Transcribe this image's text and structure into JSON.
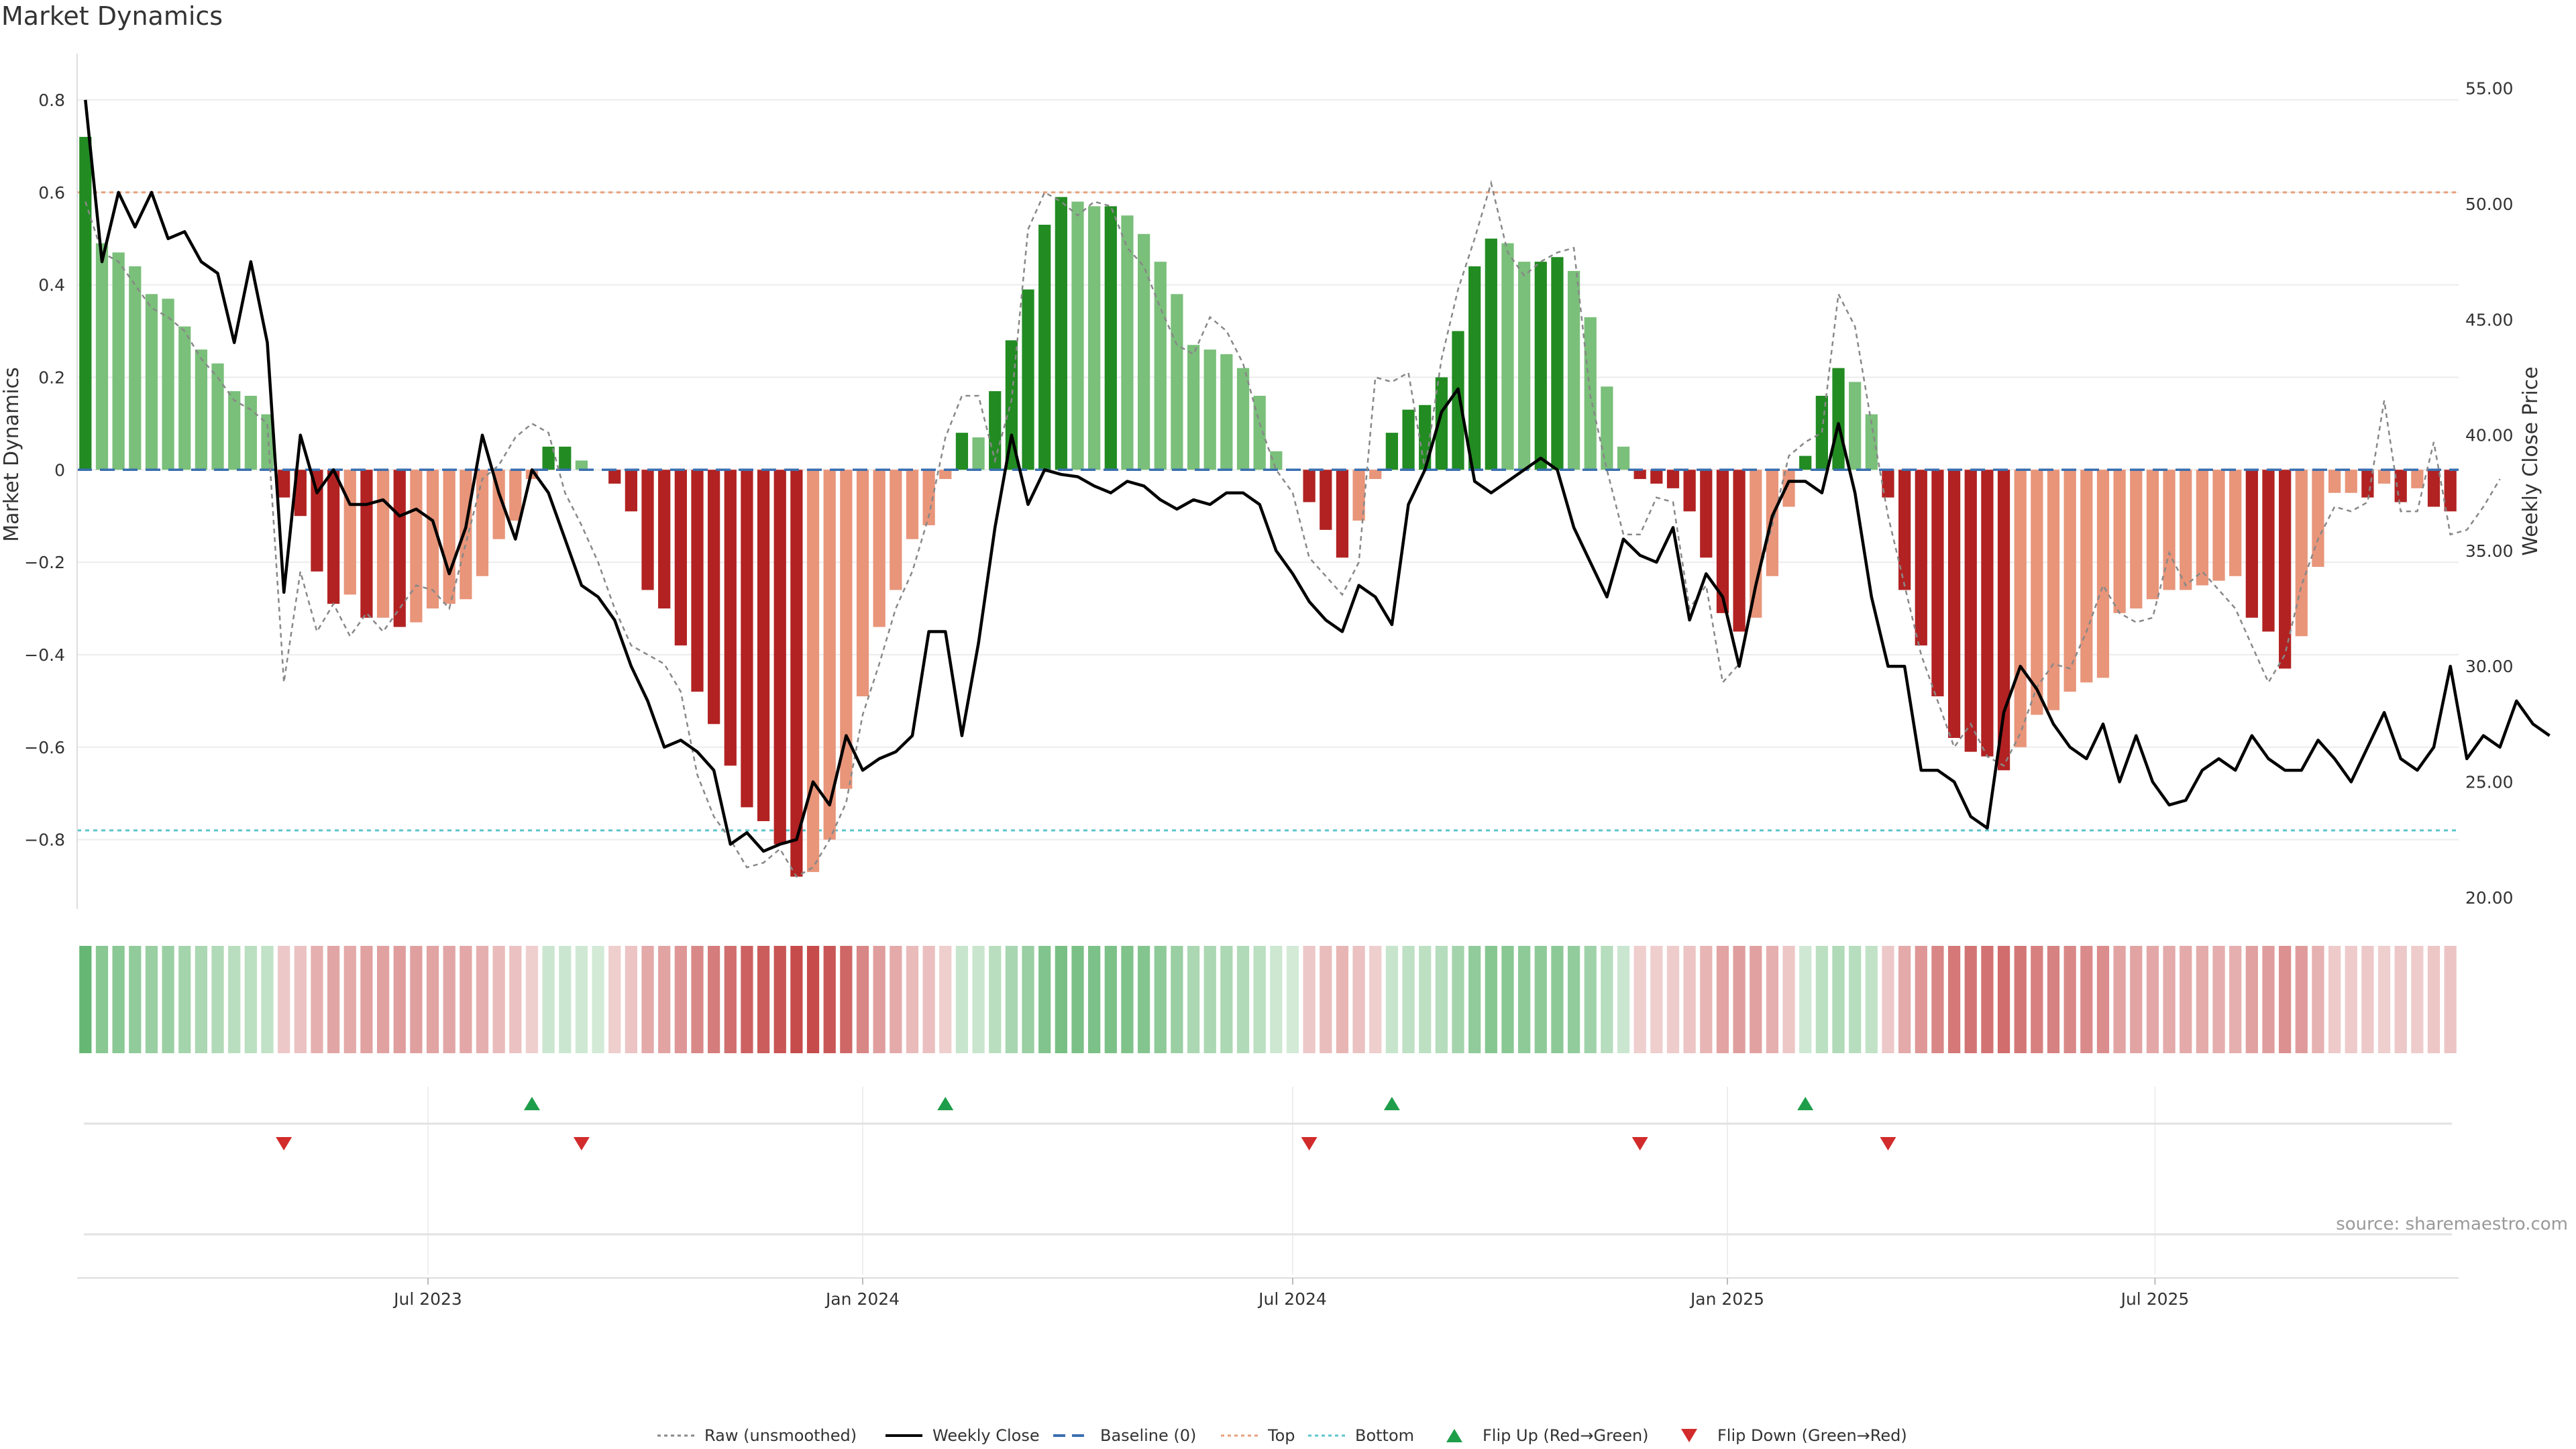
{
  "title": "Market Dynamics",
  "source": "source: sharemaestro.com",
  "chart_data": {
    "type": "bar+line",
    "title": "Market Dynamics",
    "ylabel_left": "Market Dynamics",
    "ylabel_right": "Weekly Close Price",
    "ylim_left": [
      -0.95,
      0.9
    ],
    "ylim_right": [
      19.5,
      56.5
    ],
    "yticks_left": [
      "0.8",
      "0.6",
      "0.4",
      "0.2",
      "0",
      "−0.2",
      "−0.4",
      "−0.6",
      "−0.8"
    ],
    "yticks_left_values": [
      0.8,
      0.6,
      0.4,
      0.2,
      0,
      -0.2,
      -0.4,
      -0.6,
      -0.8
    ],
    "yticks_right": [
      "55.00",
      "50.00",
      "45.00",
      "40.00",
      "35.00",
      "30.00",
      "25.00",
      "20.00"
    ],
    "yticks_right_values": [
      55,
      50,
      45,
      40,
      35,
      30,
      25,
      20
    ],
    "x_start": "2023-02-06",
    "x_step_days": 7,
    "x_ticks": [
      {
        "label": "Jul 2023",
        "date": "2023-07-01"
      },
      {
        "label": "Jan 2024",
        "date": "2024-01-01"
      },
      {
        "label": "Jul 2024",
        "date": "2024-07-01"
      },
      {
        "label": "Jan 2025",
        "date": "2025-01-01"
      },
      {
        "label": "Jul 2025",
        "date": "2025-07-01"
      }
    ],
    "grid": true,
    "legend_position": "bottom-center",
    "top_level": 0.6,
    "bottom_level": -0.78,
    "baseline": 0,
    "colors": {
      "strong_green": "#228B22",
      "light_green": "#7ABF7A",
      "strong_red": "#B22222",
      "light_red": "#E8957A",
      "close_line": "#000000",
      "raw_line": "#888888",
      "baseline": "#3A6FB0",
      "top": "#E8A07A",
      "bottom": "#5CC5CC",
      "flip_up": "#1E9E4A",
      "flip_down": "#D22B2B"
    },
    "bars": [
      0.72,
      0.49,
      0.47,
      0.44,
      0.38,
      0.37,
      0.31,
      0.26,
      0.23,
      0.17,
      0.16,
      0.12,
      -0.06,
      -0.1,
      -0.22,
      -0.29,
      -0.27,
      -0.32,
      -0.32,
      -0.34,
      -0.33,
      -0.3,
      -0.29,
      -0.28,
      -0.23,
      -0.15,
      -0.11,
      -0.02,
      0.05,
      0.05,
      0.02,
      0,
      -0.03,
      -0.09,
      -0.26,
      -0.3,
      -0.38,
      -0.48,
      -0.55,
      -0.64,
      -0.73,
      -0.76,
      -0.81,
      -0.88,
      -0.87,
      -0.8,
      -0.69,
      -0.49,
      -0.34,
      -0.26,
      -0.15,
      -0.12,
      -0.02,
      0.08,
      0.07,
      0.17,
      0.28,
      0.39,
      0.53,
      0.59,
      0.58,
      0.57,
      0.57,
      0.55,
      0.51,
      0.45,
      0.38,
      0.27,
      0.26,
      0.25,
      0.22,
      0.16,
      0.04,
      0,
      -0.07,
      -0.13,
      -0.19,
      -0.11,
      -0.02,
      0.08,
      0.13,
      0.14,
      0.2,
      0.3,
      0.44,
      0.5,
      0.49,
      0.45,
      0.45,
      0.46,
      0.43,
      0.33,
      0.18,
      0.05,
      -0.02,
      -0.03,
      -0.04,
      -0.09,
      -0.19,
      -0.31,
      -0.35,
      -0.32,
      -0.23,
      -0.08,
      0.03,
      0.16,
      0.22,
      0.19,
      0.12,
      -0.06,
      -0.26,
      -0.38,
      -0.49,
      -0.58,
      -0.61,
      -0.62,
      -0.65,
      -0.6,
      -0.53,
      -0.52,
      -0.48,
      -0.46,
      -0.45,
      -0.31,
      -0.3,
      -0.28,
      -0.26,
      -0.26,
      -0.25,
      -0.24,
      -0.23,
      -0.32,
      -0.35,
      -0.43,
      -0.36,
      -0.21,
      -0.05,
      -0.05,
      -0.06,
      -0.03,
      -0.07,
      -0.04,
      -0.08,
      -0.09
    ],
    "weekly_close": [
      54.5,
      47.5,
      50.5,
      49.0,
      50.5,
      48.5,
      48.8,
      47.5,
      47.0,
      44.0,
      47.5,
      44.0,
      33.2,
      40.0,
      37.5,
      38.5,
      37.0,
      37.0,
      37.2,
      36.5,
      36.8,
      36.3,
      34.0,
      36.0,
      40.0,
      37.5,
      35.5,
      38.5,
      37.5,
      35.5,
      33.5,
      33.0,
      32.0,
      30.0,
      28.5,
      26.5,
      26.8,
      26.3,
      25.5,
      22.3,
      22.8,
      22.0,
      22.3,
      22.5,
      25.0,
      24.0,
      27.0,
      25.5,
      26.0,
      26.3,
      27.0,
      31.5,
      31.5,
      27.0,
      31.0,
      36.0,
      40.0,
      37.0,
      38.5,
      38.3,
      38.2,
      37.8,
      37.5,
      38.0,
      37.8,
      37.2,
      36.8,
      37.2,
      37.0,
      37.5,
      37.5,
      37.0,
      35.0,
      34.0,
      32.8,
      32.0,
      31.5,
      33.5,
      33.0,
      31.8,
      37.0,
      38.5,
      41.0,
      42.0,
      38.0,
      37.5,
      38.0,
      38.5,
      39.0,
      38.5,
      36.0,
      34.5,
      33.0,
      35.5,
      34.8,
      34.5,
      36.0,
      32.0,
      34.0,
      33.0,
      30.0,
      33.5,
      36.5,
      38.0,
      38.0,
      37.5,
      40.5,
      37.5,
      33.0,
      30.0,
      30.0,
      25.5,
      25.5,
      25.0,
      23.5,
      23.0,
      28.0,
      30.0,
      29.0,
      27.5,
      26.5,
      26.0,
      27.5,
      25.0,
      27.0,
      25.0,
      24.0,
      24.2,
      25.5,
      26.0,
      25.5,
      27.0,
      26.0,
      25.5,
      25.5,
      26.8,
      26.0,
      25.0,
      26.5,
      28.0,
      26.0,
      25.5,
      26.5,
      30.0,
      26.0,
      27.0,
      26.5,
      28.5,
      27.5,
      27.0
    ],
    "raw": [
      0.58,
      0.47,
      0.45,
      0.4,
      0.35,
      0.33,
      0.3,
      0.24,
      0.2,
      0.15,
      0.13,
      0.1,
      -0.46,
      -0.22,
      -0.35,
      -0.29,
      -0.36,
      -0.31,
      -0.35,
      -0.3,
      -0.25,
      -0.26,
      -0.3,
      -0.16,
      -0.02,
      0.01,
      0.07,
      0.1,
      0.08,
      -0.05,
      -0.12,
      -0.2,
      -0.3,
      -0.38,
      -0.4,
      -0.42,
      -0.48,
      -0.66,
      -0.75,
      -0.8,
      -0.86,
      -0.85,
      -0.82,
      -0.88,
      -0.86,
      -0.8,
      -0.72,
      -0.53,
      -0.42,
      -0.3,
      -0.22,
      -0.1,
      0.07,
      0.16,
      0.16,
      0.02,
      0.15,
      0.52,
      0.6,
      0.58,
      0.55,
      0.58,
      0.57,
      0.48,
      0.44,
      0.35,
      0.27,
      0.25,
      0.33,
      0.3,
      0.23,
      0.1,
      0.0,
      -0.05,
      -0.19,
      -0.23,
      -0.27,
      -0.2,
      0.2,
      0.19,
      0.21,
      0.0,
      0.24,
      0.39,
      0.5,
      0.62,
      0.47,
      0.42,
      0.45,
      0.47,
      0.48,
      0.16,
      0.0,
      -0.14,
      -0.14,
      -0.06,
      -0.07,
      -0.3,
      -0.25,
      -0.46,
      -0.42,
      -0.25,
      -0.12,
      0.03,
      0.06,
      0.08,
      0.38,
      0.31,
      0.1,
      -0.1,
      -0.25,
      -0.4,
      -0.5,
      -0.6,
      -0.55,
      -0.62,
      -0.64,
      -0.57,
      -0.47,
      -0.42,
      -0.43,
      -0.35,
      -0.25,
      -0.31,
      -0.33,
      -0.32,
      -0.18,
      -0.25,
      -0.22,
      -0.26,
      -0.3,
      -0.38,
      -0.46,
      -0.4,
      -0.25,
      -0.15,
      -0.08,
      -0.09,
      -0.07,
      0.15,
      -0.09,
      -0.09,
      0.06,
      -0.14,
      -0.13,
      -0.08,
      -0.02
    ],
    "flips_up_index": [
      27,
      52,
      79,
      104
    ],
    "flips_down_index": [
      12,
      30,
      74,
      94,
      109
    ],
    "legend": [
      {
        "key": "raw",
        "label": "Raw (unsmoothed)"
      },
      {
        "key": "close",
        "label": "Weekly Close"
      },
      {
        "key": "baseline",
        "label": "Baseline (0)"
      },
      {
        "key": "top",
        "label": "Top"
      },
      {
        "key": "bottom",
        "label": "Bottom"
      },
      {
        "key": "flip_up",
        "label": "Flip Up (Red→Green)"
      },
      {
        "key": "flip_down",
        "label": "Flip Down (Green→Red)"
      }
    ]
  }
}
